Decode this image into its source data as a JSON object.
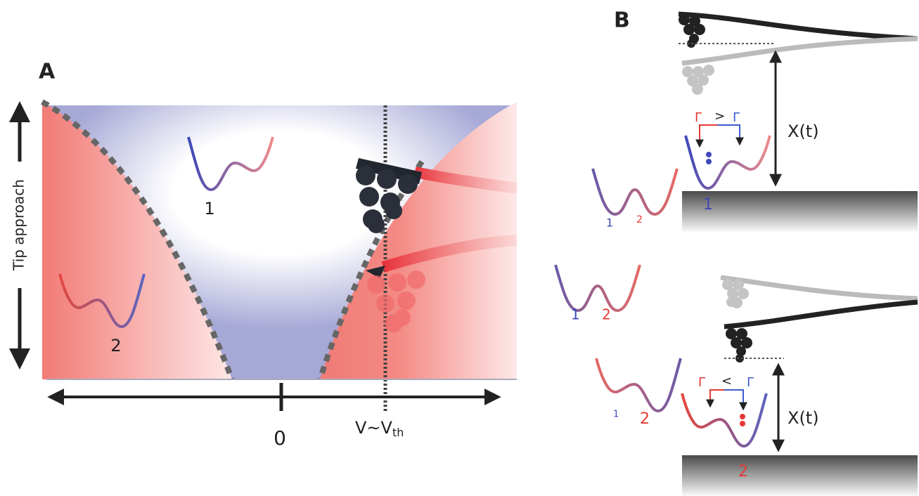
{
  "panel_a": {
    "label": "A",
    "y_axis_label": "Tip approach",
    "x_axis": {
      "origin_label": "0",
      "threshold_label": {
        "main": "V~V",
        "sub": "th"
      }
    },
    "state_labels": [
      "1",
      "2"
    ]
  },
  "panel_b": {
    "label": "B",
    "top": {
      "displacement_label": "X(t)",
      "rate_left": "Γ",
      "comparison": ">",
      "rate_right": "Γ",
      "state": "1"
    },
    "bottom": {
      "displacement_label": "X(t)",
      "rate_left": "Γ",
      "comparison": "<",
      "rate_right": "Γ",
      "state": "2"
    },
    "wells": [
      {
        "left": "1",
        "right": "2"
      },
      {
        "left": "1",
        "right": "2"
      },
      {
        "left": "1",
        "right": "2"
      }
    ]
  }
}
